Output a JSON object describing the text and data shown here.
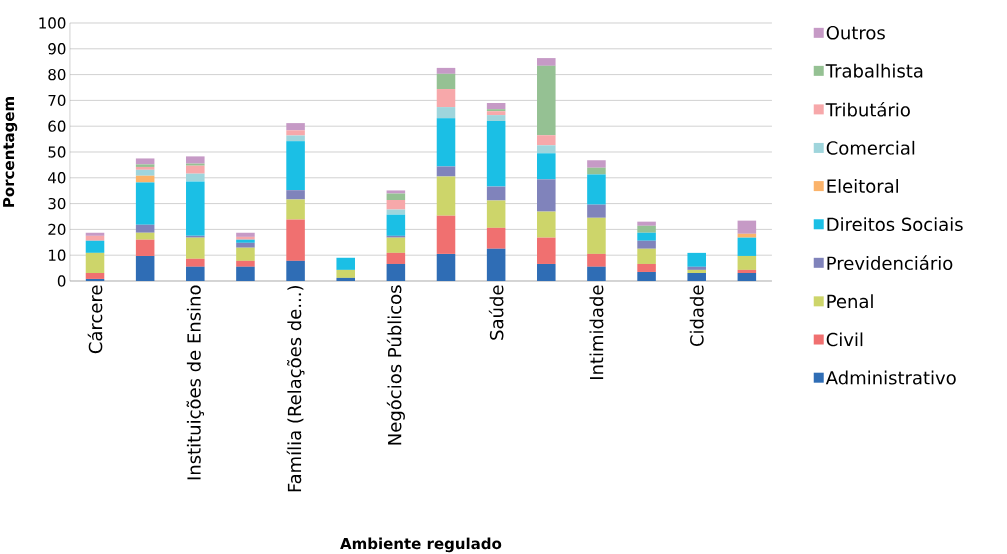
{
  "chart_data": {
    "type": "bar",
    "stacked": true,
    "xlabel": "Ambiente regulado",
    "ylabel": "Porcentagem",
    "categories": [
      "Cárcere",
      null,
      "Instituições de Ensino",
      null,
      "Família (Relações de...)",
      null,
      "Negócios Públicos",
      null,
      "Saúde",
      null,
      "Intimidade",
      null,
      "Cidade",
      null
    ],
    "series": [
      {
        "name": "Administrativo",
        "color": "#2f6db5",
        "values": [
          0.8,
          9.7,
          5.5,
          5.5,
          7.8,
          1.2,
          6.6,
          10.5,
          12.5,
          6.6,
          5.5,
          3.5,
          3.1,
          3.1
        ]
      },
      {
        "name": "Civil",
        "color": "#f07070",
        "values": [
          2.3,
          6.3,
          3.1,
          2.3,
          16,
          0,
          4.3,
          14.8,
          8.1,
          10.2,
          5.0,
          3.1,
          0,
          1.2
        ]
      },
      {
        "name": "Penal",
        "color": "#cdd56a",
        "values": [
          7.8,
          2.7,
          8.2,
          5.1,
          7.8,
          3.1,
          5.9,
          15.2,
          10.6,
          10.1,
          14.0,
          5.9,
          1.2,
          5.4
        ]
      },
      {
        "name": "Previdenciário",
        "color": "#8083bb",
        "values": [
          0,
          3.1,
          0.7,
          1.9,
          3.6,
          0,
          0.7,
          3.9,
          5.4,
          12.5,
          5.1,
          3.1,
          1.2,
          0
        ]
      },
      {
        "name": "Direitos Sociais",
        "color": "#1bbfe5",
        "values": [
          4.7,
          16.4,
          21.1,
          1.2,
          19,
          4.7,
          8.2,
          18.7,
          25.4,
          10.1,
          11.7,
          3.1,
          5.4,
          7.1
        ]
      },
      {
        "name": "Eleitoral",
        "color": "#fbb36a",
        "values": [
          0,
          2.6,
          0,
          0,
          0,
          0,
          0,
          0,
          0,
          0,
          0,
          0,
          0,
          1.5
        ]
      },
      {
        "name": "Comercial",
        "color": "#9fd5dc",
        "values": [
          0,
          2.3,
          3.0,
          0,
          2.2,
          0,
          2.0,
          4.3,
          2.3,
          3.1,
          0,
          0,
          0,
          0
        ]
      },
      {
        "name": "Tributário",
        "color": "#f7a8aa",
        "values": [
          1.9,
          1.1,
          3.1,
          1.1,
          2.0,
          0,
          3.7,
          7.0,
          1.5,
          3.9,
          0,
          0,
          0,
          0
        ]
      },
      {
        "name": "Trabalhista",
        "color": "#95c193",
        "values": [
          0,
          1.0,
          0.8,
          0,
          0,
          0,
          2.5,
          5.9,
          0.8,
          26.9,
          2.6,
          2.7,
          0,
          0
        ]
      },
      {
        "name": "Outros",
        "color": "#c69ac6",
        "values": [
          1.2,
          2.3,
          2.8,
          1.6,
          2.8,
          0,
          1.2,
          2.3,
          2.4,
          3.0,
          2.9,
          1.6,
          0,
          5.1
        ]
      }
    ],
    "ylim": [
      0,
      100
    ],
    "yticks": [
      0,
      10,
      20,
      30,
      40,
      50,
      60,
      70,
      80,
      90,
      100
    ],
    "grid": "y",
    "legend": "right"
  }
}
